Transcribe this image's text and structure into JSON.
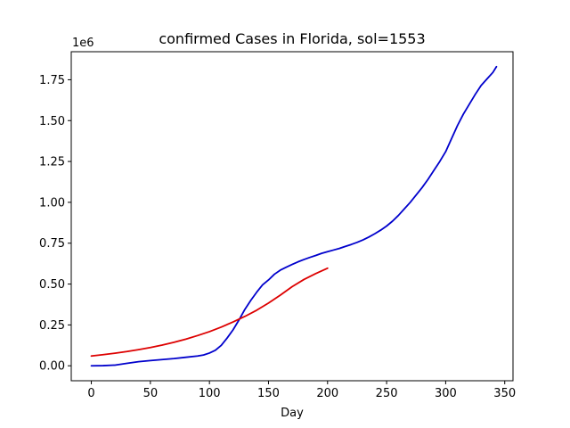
{
  "chart_data": {
    "type": "line",
    "title": "confirmed Cases in Florida, sol=1553",
    "xlabel": "Day",
    "ylabel": "",
    "y_offset_label": "1e6",
    "xlim": [
      -17,
      357
    ],
    "ylim": [
      -0.0915,
      1.9215
    ],
    "x_ticks": [
      0,
      50,
      100,
      150,
      200,
      250,
      300,
      350
    ],
    "x_tick_labels": [
      "0",
      "50",
      "100",
      "150",
      "200",
      "250",
      "300",
      "350"
    ],
    "y_ticks": [
      0,
      0.25,
      0.5,
      0.75,
      1.0,
      1.25,
      1.5,
      1.75
    ],
    "y_tick_labels": [
      "0.00",
      "0.25",
      "0.50",
      "0.75",
      "1.00",
      "1.25",
      "1.50",
      "1.75"
    ],
    "grid": false,
    "legend": "none",
    "series": [
      {
        "color": "#0000cc",
        "points": [
          [
            0,
            0.0
          ],
          [
            10,
            0.001
          ],
          [
            20,
            0.004
          ],
          [
            30,
            0.015
          ],
          [
            40,
            0.025
          ],
          [
            50,
            0.032
          ],
          [
            60,
            0.038
          ],
          [
            70,
            0.044
          ],
          [
            80,
            0.052
          ],
          [
            90,
            0.06
          ],
          [
            95,
            0.066
          ],
          [
            100,
            0.078
          ],
          [
            105,
            0.095
          ],
          [
            110,
            0.125
          ],
          [
            115,
            0.17
          ],
          [
            120,
            0.22
          ],
          [
            125,
            0.28
          ],
          [
            130,
            0.345
          ],
          [
            135,
            0.4
          ],
          [
            140,
            0.45
          ],
          [
            145,
            0.495
          ],
          [
            150,
            0.525
          ],
          [
            155,
            0.56
          ],
          [
            160,
            0.585
          ],
          [
            165,
            0.603
          ],
          [
            170,
            0.62
          ],
          [
            175,
            0.636
          ],
          [
            180,
            0.65
          ],
          [
            185,
            0.663
          ],
          [
            190,
            0.675
          ],
          [
            195,
            0.688
          ],
          [
            200,
            0.698
          ],
          [
            205,
            0.708
          ],
          [
            210,
            0.718
          ],
          [
            215,
            0.73
          ],
          [
            220,
            0.742
          ],
          [
            225,
            0.755
          ],
          [
            230,
            0.77
          ],
          [
            235,
            0.788
          ],
          [
            240,
            0.808
          ],
          [
            245,
            0.83
          ],
          [
            250,
            0.855
          ],
          [
            255,
            0.885
          ],
          [
            260,
            0.92
          ],
          [
            265,
            0.96
          ],
          [
            270,
            1.0
          ],
          [
            275,
            1.045
          ],
          [
            280,
            1.09
          ],
          [
            285,
            1.14
          ],
          [
            290,
            1.195
          ],
          [
            295,
            1.25
          ],
          [
            300,
            1.31
          ],
          [
            305,
            1.39
          ],
          [
            310,
            1.47
          ],
          [
            315,
            1.54
          ],
          [
            320,
            1.6
          ],
          [
            325,
            1.66
          ],
          [
            330,
            1.715
          ],
          [
            335,
            1.755
          ],
          [
            340,
            1.795
          ],
          [
            343,
            1.83
          ]
        ]
      },
      {
        "color": "#dd0000",
        "points": [
          [
            0,
            0.06
          ],
          [
            10,
            0.068
          ],
          [
            20,
            0.077
          ],
          [
            30,
            0.087
          ],
          [
            40,
            0.099
          ],
          [
            50,
            0.112
          ],
          [
            60,
            0.127
          ],
          [
            70,
            0.144
          ],
          [
            80,
            0.163
          ],
          [
            90,
            0.185
          ],
          [
            100,
            0.209
          ],
          [
            110,
            0.237
          ],
          [
            120,
            0.268
          ],
          [
            130,
            0.302
          ],
          [
            140,
            0.34
          ],
          [
            150,
            0.384
          ],
          [
            160,
            0.432
          ],
          [
            170,
            0.484
          ],
          [
            180,
            0.528
          ],
          [
            190,
            0.564
          ],
          [
            200,
            0.597
          ]
        ]
      }
    ]
  }
}
